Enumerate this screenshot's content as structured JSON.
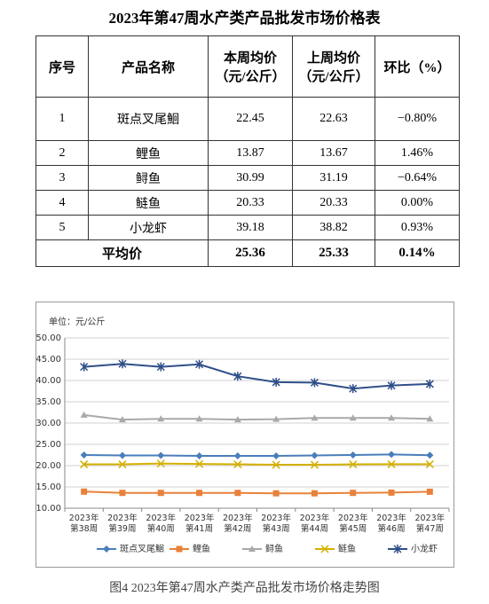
{
  "table": {
    "title": "2023年第47周水产类产品批发市场价格表",
    "headers": [
      "序号",
      "产品名称",
      "本周均价（元/公斤）",
      "上周均价（元/公斤）",
      "环比（%）"
    ],
    "rows": [
      [
        "1",
        "斑点叉尾鮰",
        "22.45",
        "22.63",
        "−0.80%"
      ],
      [
        "2",
        "鲤鱼",
        "13.87",
        "13.67",
        "1.46%"
      ],
      [
        "3",
        "鲟鱼",
        "30.99",
        "31.19",
        "−0.64%"
      ],
      [
        "4",
        "鲢鱼",
        "20.33",
        "20.33",
        "0.00%"
      ],
      [
        "5",
        "小龙虾",
        "39.18",
        "38.82",
        "0.93%"
      ]
    ],
    "footer": [
      "平均价",
      "25.36",
      "25.33",
      "0.14%"
    ]
  },
  "chart_data": {
    "type": "line",
    "ylabel": "单位：元/公斤",
    "categories": [
      "2023年第38周",
      "2023年第39周",
      "2023年第40周",
      "2023年第41周",
      "2023年第42周",
      "2023年第43周",
      "2023年第44周",
      "2023年第45周",
      "2023年第46周",
      "2023年第47周"
    ],
    "series": [
      {
        "name": "斑点叉尾鮰",
        "color": "#4a7ebb",
        "marker": "diamond",
        "values": [
          22.5,
          22.4,
          22.4,
          22.3,
          22.3,
          22.3,
          22.4,
          22.5,
          22.63,
          22.45
        ]
      },
      {
        "name": "鲤鱼",
        "color": "#e8813a",
        "marker": "square",
        "values": [
          13.9,
          13.6,
          13.6,
          13.6,
          13.6,
          13.5,
          13.5,
          13.6,
          13.67,
          13.87
        ]
      },
      {
        "name": "鲟鱼",
        "color": "#a9a9a9",
        "marker": "triangle",
        "values": [
          31.9,
          30.8,
          31.0,
          31.0,
          30.8,
          30.9,
          31.2,
          31.2,
          31.19,
          30.99
        ]
      },
      {
        "name": "鲢鱼",
        "color": "#d4b000",
        "marker": "x",
        "values": [
          20.3,
          20.3,
          20.5,
          20.4,
          20.3,
          20.2,
          20.2,
          20.3,
          20.33,
          20.33
        ]
      },
      {
        "name": "小龙虾",
        "color": "#2f4f8a",
        "marker": "star",
        "values": [
          43.2,
          43.9,
          43.2,
          43.8,
          41.0,
          39.6,
          39.5,
          38.1,
          38.82,
          39.18
        ]
      }
    ],
    "ylim": [
      10,
      50
    ],
    "yticks": [
      {
        "value": 10,
        "label": "10.00"
      },
      {
        "value": 15,
        "label": "15.00"
      },
      {
        "value": 20,
        "label": "20.00"
      },
      {
        "value": 25,
        "label": "25.00"
      },
      {
        "value": 30,
        "label": "30.00"
      },
      {
        "value": 35,
        "label": "35.00"
      },
      {
        "value": 40,
        "label": "40.00"
      },
      {
        "value": 45,
        "label": "45.00"
      },
      {
        "value": 50,
        "label": "50.00"
      }
    ],
    "grid": true,
    "legend": "bottom"
  },
  "caption": "图4 2023年第47周水产类产品批发市场价格走势图"
}
